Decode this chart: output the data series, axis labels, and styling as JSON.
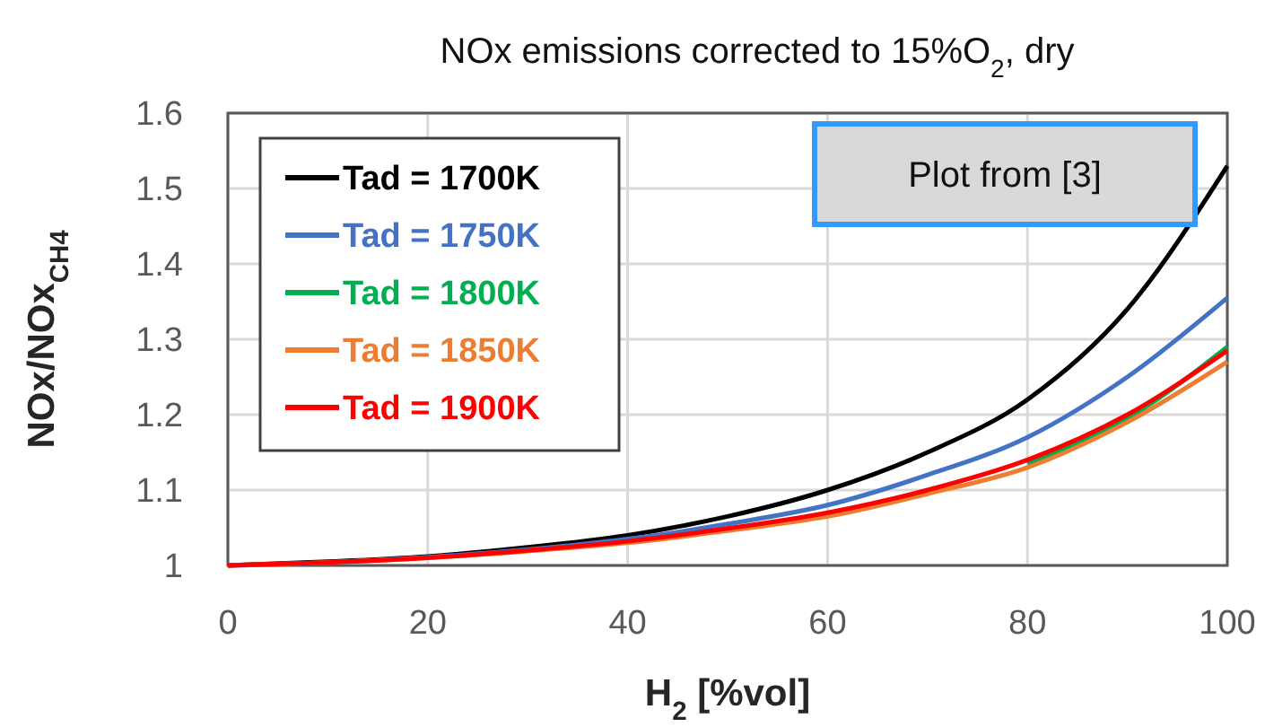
{
  "chart_data": {
    "type": "line",
    "title": "NOx emissions corrected to 15%O$_{2}$, dry",
    "xlabel": "H$_{2}$ [%vol]",
    "ylabel": "NOx/NOx$_{CH4}$",
    "x": [
      0,
      10,
      20,
      30,
      40,
      50,
      60,
      70,
      80,
      90,
      100
    ],
    "series": [
      {
        "name": "Tad = 1700K",
        "color": "#000000",
        "values": [
          1,
          1.005,
          1.012,
          1.024,
          1.04,
          1.065,
          1.1,
          1.15,
          1.22,
          1.34,
          1.53
        ]
      },
      {
        "name": "Tad = 1750K",
        "color": "#4472c4",
        "values": [
          1,
          1.004,
          1.011,
          1.021,
          1.035,
          1.055,
          1.08,
          1.12,
          1.17,
          1.25,
          1.355
        ]
      },
      {
        "name": "Tad = 1800K",
        "color": "#00b050",
        "values": [
          null,
          null,
          null,
          null,
          null,
          null,
          null,
          null,
          1.135,
          1.195,
          1.29
        ]
      },
      {
        "name": "Tad = 1850K",
        "color": "#ed7d31",
        "values": [
          1,
          1.004,
          1.01,
          1.019,
          1.03,
          1.046,
          1.065,
          1.095,
          1.13,
          1.19,
          1.27
        ]
      },
      {
        "name": "Tad = 1900K",
        "color": "#ff0000",
        "values": [
          1,
          1.004,
          1.01,
          1.02,
          1.032,
          1.049,
          1.07,
          1.1,
          1.14,
          1.2,
          1.285
        ]
      }
    ],
    "xlim": [
      0,
      100
    ],
    "xticks": [
      0,
      20,
      40,
      60,
      80,
      100
    ],
    "ylim": [
      1,
      1.6
    ],
    "yticks": [
      1,
      1.1,
      1.2,
      1.3,
      1.4,
      1.5,
      1.6
    ],
    "grid": true,
    "legend": "top left",
    "marker": "none",
    "line_style": "solid",
    "annotations": [
      "Plot from [3]"
    ]
  }
}
